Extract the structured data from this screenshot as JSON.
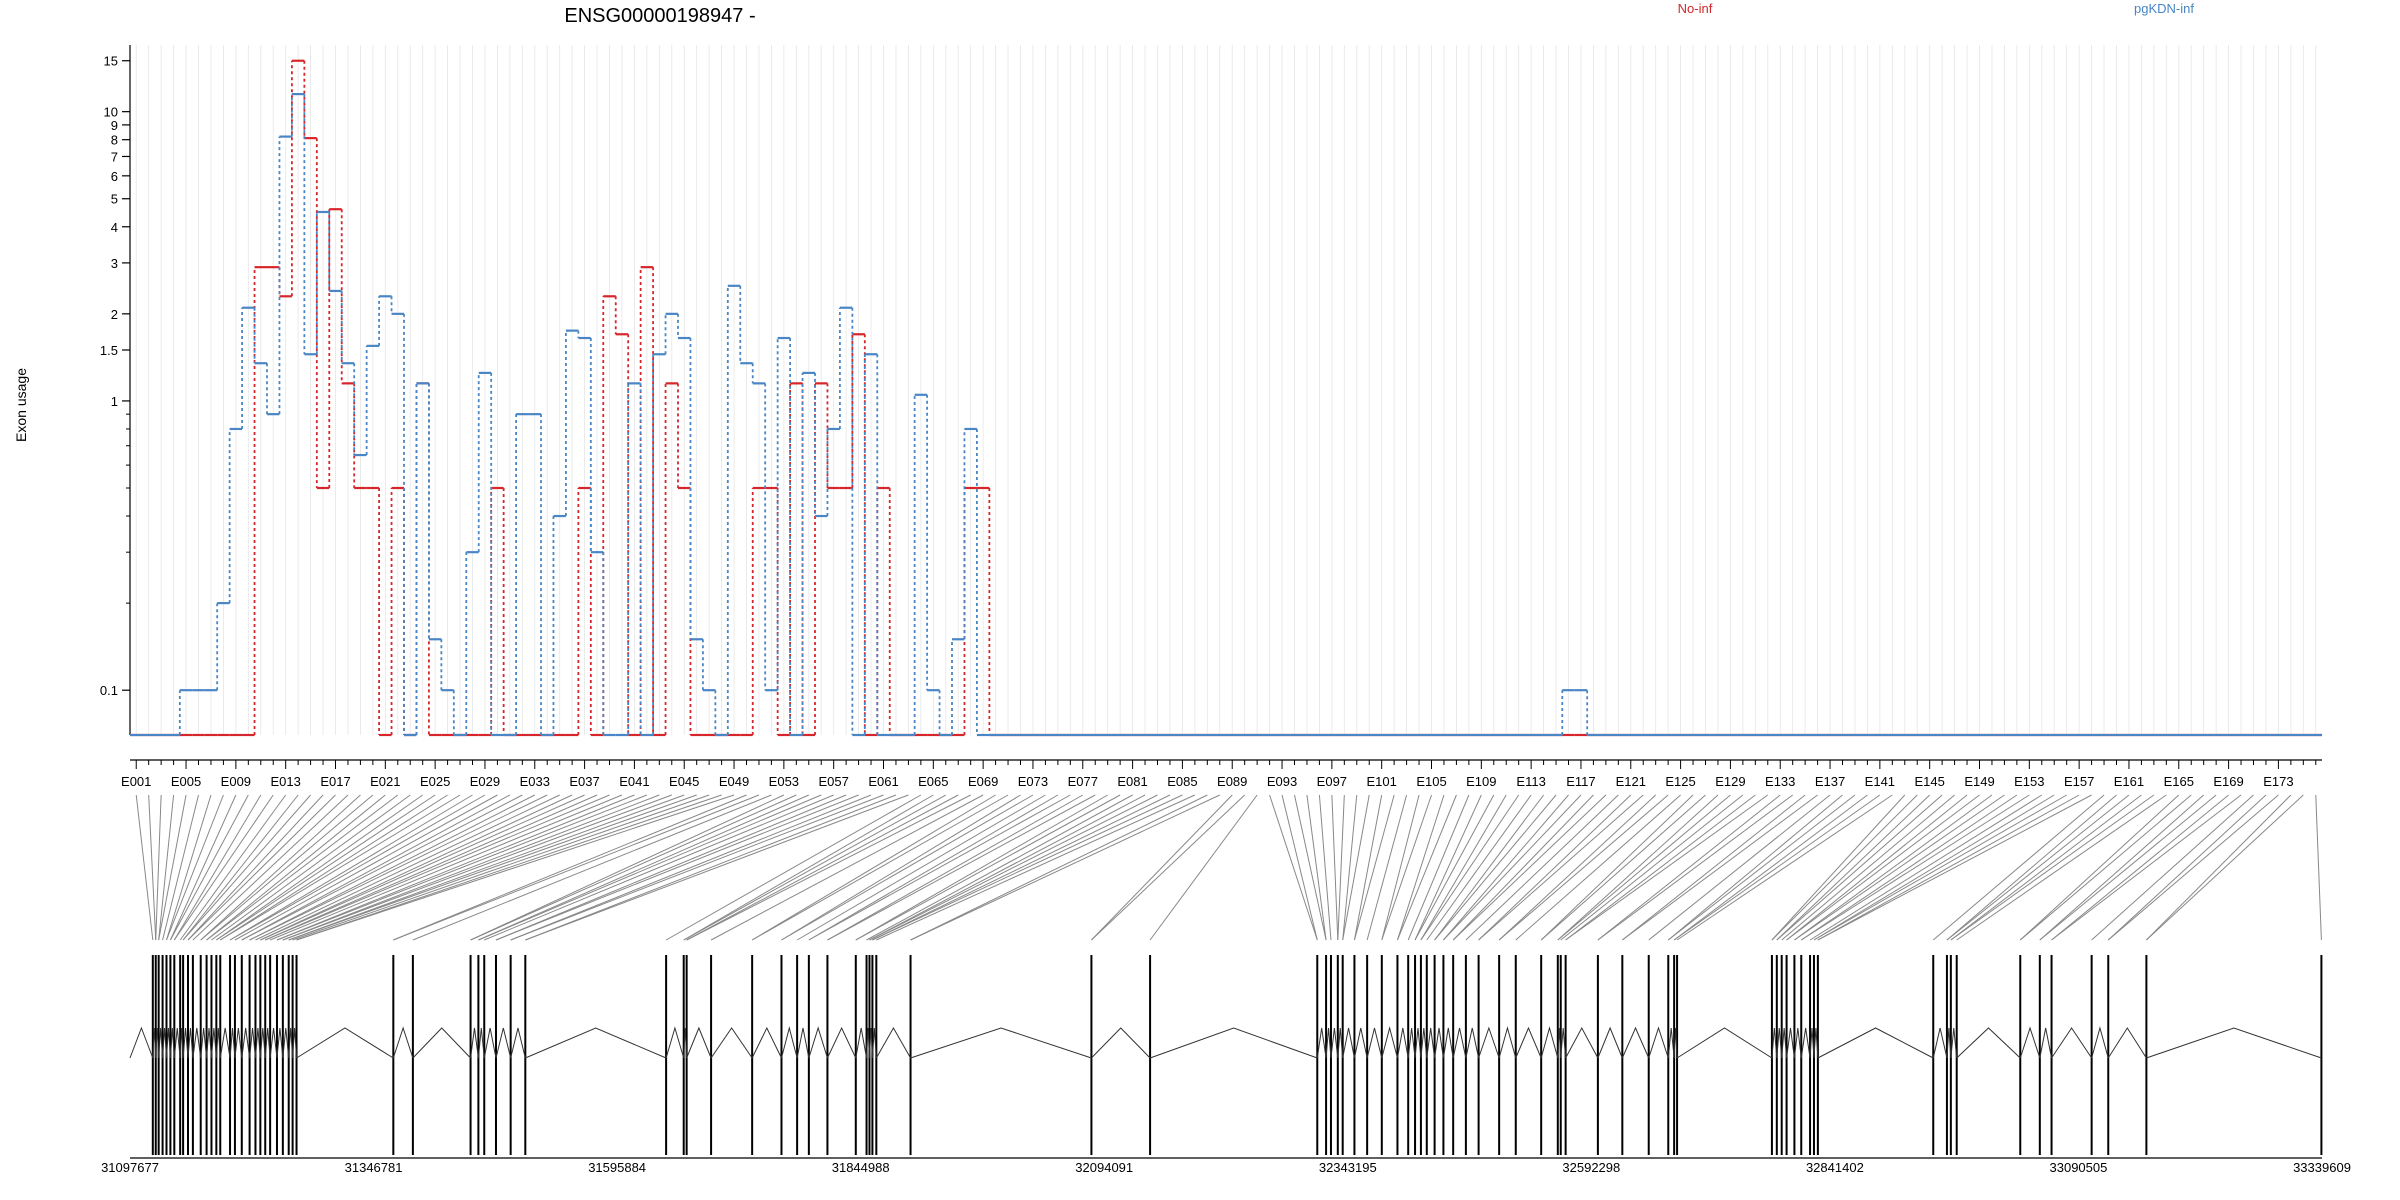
{
  "chart_data": {
    "type": "line",
    "title": "ENSG00000198947 -",
    "ylabel": "Exon usage",
    "xlabel": "",
    "y_scale": "log",
    "ylim": [
      0.07,
      17
    ],
    "y_ticks": [
      0.1,
      1,
      1.5,
      2,
      3,
      4,
      5,
      6,
      7,
      8,
      9,
      10,
      15
    ],
    "y_tick_labels": [
      "0.1",
      "1",
      "1.5",
      "2",
      "3",
      "4",
      "5",
      "6",
      "7",
      "8",
      "9",
      "10",
      "15"
    ],
    "n_exons": 176,
    "exon_tick_labels": [
      "E001",
      "E005",
      "E009",
      "E013",
      "E017",
      "E021",
      "E025",
      "E029",
      "E033",
      "E037",
      "E041",
      "E045",
      "E049",
      "E053",
      "E057",
      "E061",
      "E065",
      "E069",
      "E073",
      "E077",
      "E081",
      "E085",
      "E089",
      "E093",
      "E097",
      "E101",
      "E105",
      "E109",
      "E113",
      "E117",
      "E121",
      "E125",
      "E129",
      "E133",
      "E137",
      "E141",
      "E145",
      "E149",
      "E153",
      "E157",
      "E161",
      "E165",
      "E169",
      "E173"
    ],
    "legend": [
      "No-inf",
      "pgKDN-inf"
    ],
    "legend_position": "top-right",
    "grid": true,
    "colors": {
      "No-inf": "#d7262b",
      "pgKDN-inf": "#4a86c5"
    },
    "series": [
      {
        "name": "No-inf",
        "values": [
          0.07,
          0.07,
          0.07,
          0.07,
          0.07,
          0.07,
          0.07,
          0.07,
          0.07,
          0.07,
          2.9,
          2.9,
          2.3,
          15,
          8.1,
          0.5,
          4.6,
          1.15,
          0.5,
          0.5,
          0.07,
          0.5,
          0.07,
          1.15,
          0.07,
          0.07,
          0.07,
          0.07,
          0.07,
          0.5,
          0.07,
          0.07,
          0.07,
          0.07,
          0.07,
          0.07,
          0.5,
          0.07,
          2.3,
          1.7,
          0.07,
          2.9,
          0.07,
          1.15,
          0.5,
          0.07,
          0.07,
          0.07,
          0.07,
          0.07,
          0.5,
          0.5,
          0.07,
          1.15,
          0.07,
          1.15,
          0.5,
          0.5,
          1.7,
          0.07,
          0.5,
          0.07,
          0.07,
          0.07,
          0.07,
          0.07,
          0.07,
          0.5,
          0.5,
          0.07,
          0.07,
          0.07,
          0.07,
          0.07,
          0.07,
          0.07,
          0.07,
          0.07,
          0.07,
          0.07,
          0.07,
          0.07,
          0.07,
          0.07,
          0.07,
          0.07,
          0.07,
          0.07,
          0.07,
          0.07,
          0.07,
          0.07,
          0.07,
          0.07,
          0.07,
          0.07,
          0.07,
          0.07,
          0.07,
          0.07,
          0.07,
          0.07,
          0.07,
          0.07,
          0.07,
          0.07,
          0.07,
          0.07,
          0.07,
          0.07,
          0.07,
          0.07,
          0.07,
          0.07,
          0.07,
          0.07,
          0.07,
          0.07,
          0.07,
          0.07,
          0.07,
          0.07,
          0.07,
          0.07,
          0.07,
          0.07,
          0.07,
          0.07,
          0.07,
          0.07,
          0.07,
          0.07,
          0.07,
          0.07,
          0.07,
          0.07,
          0.07,
          0.07,
          0.07,
          0.07,
          0.07,
          0.07,
          0.07,
          0.07,
          0.07,
          0.07,
          0.07,
          0.07,
          0.07,
          0.07,
          0.07,
          0.07,
          0.07,
          0.07,
          0.07,
          0.07,
          0.07,
          0.07,
          0.07,
          0.07,
          0.07,
          0.07,
          0.07,
          0.07,
          0.07,
          0.07,
          0.07,
          0.07,
          0.07,
          0.07,
          0.07,
          0.07,
          0.07,
          0.07,
          0.07,
          0.07
        ]
      },
      {
        "name": "pgKDN-inf",
        "values": [
          0.07,
          0.07,
          0.07,
          0.07,
          0.1,
          0.1,
          0.1,
          0.2,
          0.8,
          2.1,
          1.35,
          0.9,
          8.2,
          11.5,
          1.45,
          4.5,
          2.4,
          1.35,
          0.65,
          1.55,
          2.3,
          2.0,
          0.07,
          1.15,
          0.15,
          0.1,
          0.07,
          0.3,
          1.25,
          0.07,
          0.07,
          0.9,
          0.9,
          0.07,
          0.4,
          1.75,
          1.65,
          0.3,
          0.07,
          0.07,
          1.15,
          0.07,
          1.45,
          2.0,
          1.65,
          0.15,
          0.1,
          0.07,
          2.5,
          1.35,
          1.15,
          0.1,
          1.65,
          0.07,
          1.25,
          0.4,
          0.8,
          2.1,
          0.07,
          1.45,
          0.07,
          0.07,
          0.07,
          1.05,
          0.1,
          0.07,
          0.15,
          0.8,
          0.07,
          0.07,
          0.07,
          0.07,
          0.07,
          0.07,
          0.07,
          0.07,
          0.07,
          0.07,
          0.07,
          0.07,
          0.07,
          0.07,
          0.07,
          0.07,
          0.07,
          0.07,
          0.07,
          0.07,
          0.07,
          0.07,
          0.07,
          0.07,
          0.07,
          0.07,
          0.07,
          0.07,
          0.07,
          0.07,
          0.07,
          0.07,
          0.07,
          0.07,
          0.07,
          0.07,
          0.07,
          0.07,
          0.07,
          0.07,
          0.07,
          0.07,
          0.07,
          0.07,
          0.07,
          0.07,
          0.07,
          0.1,
          0.1,
          0.07,
          0.07,
          0.07,
          0.07,
          0.07,
          0.07,
          0.07,
          0.07,
          0.07,
          0.07,
          0.07,
          0.07,
          0.07,
          0.07,
          0.07,
          0.07,
          0.07,
          0.07,
          0.07,
          0.07,
          0.07,
          0.07,
          0.07,
          0.07,
          0.07,
          0.07,
          0.07,
          0.07,
          0.07,
          0.07,
          0.07,
          0.07,
          0.07,
          0.07,
          0.07,
          0.07,
          0.07,
          0.07,
          0.07,
          0.07,
          0.07,
          0.07,
          0.07,
          0.07,
          0.07,
          0.07,
          0.07,
          0.07,
          0.07,
          0.07,
          0.07,
          0.07,
          0.07,
          0.07,
          0.07,
          0.07,
          0.07,
          0.07,
          0.07
        ]
      }
    ],
    "genomic_axis": {
      "tick_labels": [
        "31097677",
        "31346781",
        "31595884",
        "31844988",
        "32094091",
        "32343195",
        "32592298",
        "32841402",
        "33090505",
        "33339609"
      ],
      "range": [
        31097677,
        33339609
      ]
    },
    "gene_model": {
      "exon_positions": [
        31121000,
        31124000,
        31127000,
        31131000,
        31135000,
        31139000,
        31143000,
        31149000,
        31152000,
        31157000,
        31162000,
        31170000,
        31176000,
        31181000,
        31186000,
        31190000,
        31200000,
        31205000,
        31212000,
        31220000,
        31226000,
        31231000,
        31236000,
        31241000,
        31248000,
        31254000,
        31260000,
        31264000,
        31268000,
        31367000,
        31387000,
        31446000,
        31454000,
        31460000,
        31472000,
        31487000,
        31502000,
        31646000,
        31664000,
        31667000,
        31692000,
        31734000,
        31764000,
        31780000,
        31792000,
        31811000,
        31840000,
        31851000,
        31854000,
        31857000,
        31861000,
        31896000,
        32081000,
        32141000,
        32312000,
        32321000,
        32326000,
        32333000,
        32338000,
        32350000,
        32363000,
        32378000,
        32394000,
        32405000,
        32412000,
        32418000,
        32424000,
        32432000,
        32441000,
        32451000,
        32464000,
        32477000,
        32498000,
        32515000,
        32541000,
        32558000,
        32561000,
        32566000,
        32599000,
        32624000,
        32651000,
        32671000,
        32677000,
        32680000,
        32777000,
        32782000,
        32787000,
        32792000,
        32800000,
        32807000,
        32816000,
        32820000,
        32824000,
        32942000,
        32956000,
        32960000,
        32966000,
        33031000,
        33051000,
        33063000,
        33104000,
        33121000,
        33160000,
        33339000
      ],
      "exon_count_shown": 104
    }
  }
}
